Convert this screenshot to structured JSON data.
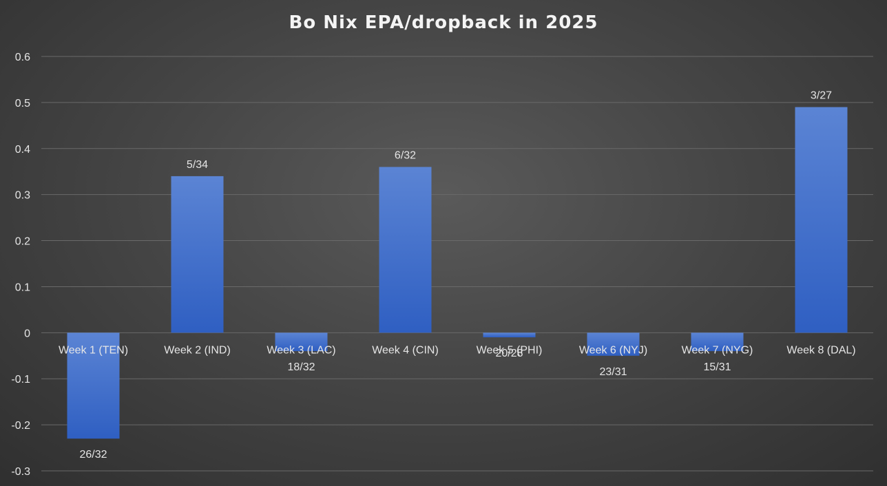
{
  "chart_data": {
    "type": "bar",
    "title": "Bo Nix EPA/dropback in 2025",
    "xlabel": "",
    "ylabel": "",
    "categories": [
      "Week 1 (TEN)",
      "Week 2 (IND)",
      "Week 3 (LAC)",
      "Week 4 (CIN)",
      "Week 5 (PHI)",
      "Week 6 (NYJ)",
      "Week 7 (NYG)",
      "Week 8 (DAL)"
    ],
    "values": [
      -0.23,
      0.34,
      -0.04,
      0.36,
      -0.01,
      -0.05,
      -0.04,
      0.49
    ],
    "data_labels": [
      "26/32",
      "5/34",
      "18/32",
      "6/32",
      "20/28",
      "23/31",
      "15/31",
      "3/27"
    ],
    "ylim": [
      -0.3,
      0.6
    ],
    "yticks": [
      "-0.3",
      "-0.2",
      "-0.1",
      "0",
      "0.1",
      "0.2",
      "0.3",
      "0.4",
      "0.5",
      "0.6"
    ],
    "grid": true,
    "legend": "none",
    "colors": {
      "bar_top": "#5b84d4",
      "bar_bottom": "#2f5fc2"
    }
  }
}
